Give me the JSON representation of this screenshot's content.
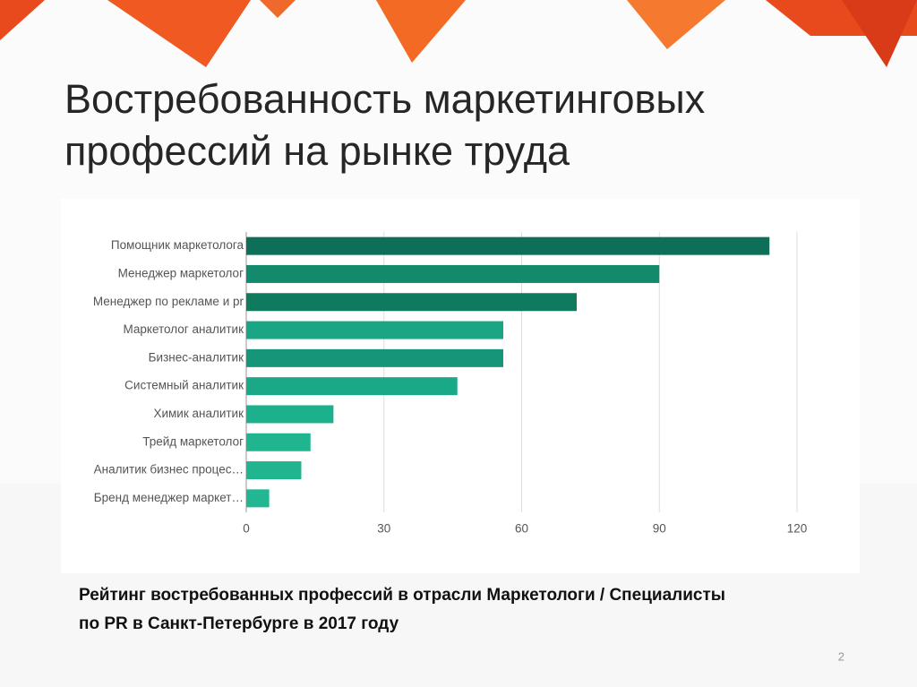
{
  "title": [
    "Востребованность маркетинговых",
    "профессий на рынке труда"
  ],
  "chart_data": {
    "type": "bar",
    "orientation": "horizontal",
    "categories": [
      "Помощник маркетолога",
      "Менеджер маркетолог",
      "Менеджер по рекламе и pr",
      "Маркетолог аналитик",
      "Бизнес-аналитик",
      "Системный аналитик",
      "Химик аналитик",
      "Трейд маркетолог",
      "Аналитик бизнес процес…",
      "Бренд менеджер маркет…"
    ],
    "values": [
      114,
      90,
      72,
      56,
      56,
      46,
      19,
      14,
      12,
      5
    ],
    "colors": [
      "#0d6f57",
      "#138a6c",
      "#0f7a5e",
      "#1aa584",
      "#15967a",
      "#1ba886",
      "#1db08c",
      "#20b48f",
      "#20b48f",
      "#22b692"
    ],
    "xlim": [
      0,
      120
    ],
    "xticks": [
      0,
      30,
      60,
      90,
      120
    ],
    "grid": true
  },
  "caption": [
    "Рейтинг востребованных профессий в отрасли Маркетологи / Специалисты",
    "по PR в Санкт-Петербурге в 2017 году"
  ],
  "page_number": "2"
}
